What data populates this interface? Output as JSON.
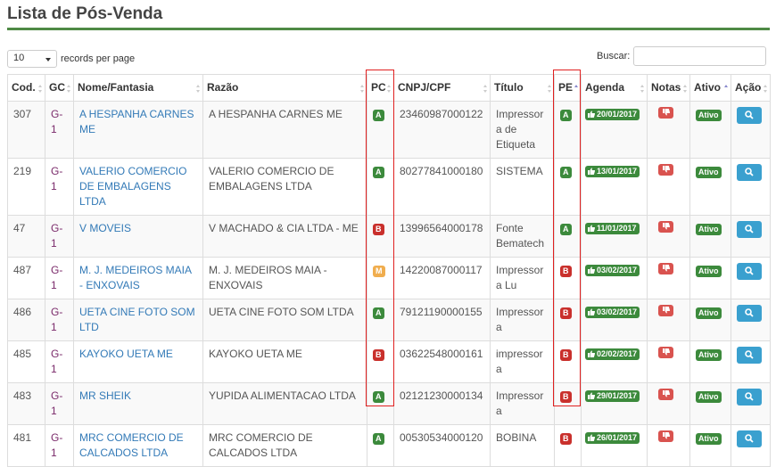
{
  "page": {
    "title": "Lista de Pós-Venda"
  },
  "controls": {
    "length_value": "10",
    "length_label": "records per page",
    "search_label": "Buscar:",
    "search_value": ""
  },
  "columns": [
    "Cod.",
    "GC",
    "Nome/Fantasia",
    "Razão",
    "PC",
    "CNPJ/CPF",
    "Título",
    "PE",
    "Agenda",
    "Notas",
    "Ativo",
    "Ação"
  ],
  "colors": {
    "green": "#3c8a3c",
    "red": "#c9302c",
    "orange": "#f0ad4e",
    "blue": "#3aa0cf",
    "highlight": "#e02020"
  },
  "rows": [
    {
      "cod": "307",
      "gc": "G-1",
      "nome": "A HESPANHA CARNES ME",
      "razao": "A HESPANHA CARNES ME",
      "pc": "A",
      "cnpj": "23460987000122",
      "titulo": "Impressora de Etiqueta",
      "pe": "A",
      "agenda": "20/01/2017",
      "ativo": "Ativo"
    },
    {
      "cod": "219",
      "gc": "G-1",
      "nome": "VALERIO COMERCIO DE EMBALAGENS LTDA",
      "razao": "VALERIO COMERCIO DE EMBALAGENS LTDA",
      "pc": "A",
      "cnpj": "80277841000180",
      "titulo": "SISTEMA",
      "pe": "A",
      "agenda": "13/01/2017",
      "ativo": "Ativo"
    },
    {
      "cod": "47",
      "gc": "G-1",
      "nome": "V MOVEIS",
      "razao": "V MACHADO & CIA LTDA - ME",
      "pc": "B",
      "cnpj": "13996564000178",
      "titulo": "Fonte Bematech",
      "pe": "A",
      "agenda": "11/01/2017",
      "ativo": "Ativo"
    },
    {
      "cod": "487",
      "gc": "G-1",
      "nome": "M. J. MEDEIROS MAIA - ENXOVAIS",
      "razao": "M. J. MEDEIROS MAIA - ENXOVAIS",
      "pc": "M",
      "cnpj": "14220087000117",
      "titulo": "Impressora Lu",
      "pe": "B",
      "agenda": "03/02/2017",
      "ativo": "Ativo"
    },
    {
      "cod": "486",
      "gc": "G-1",
      "nome": "UETA CINE FOTO SOM LTD",
      "razao": "UETA CINE FOTO SOM LTDA",
      "pc": "A",
      "cnpj": "79121190000155",
      "titulo": "Impressora",
      "pe": "B",
      "agenda": "03/02/2017",
      "ativo": "Ativo"
    },
    {
      "cod": "485",
      "gc": "G-1",
      "nome": "KAYOKO UETA ME",
      "razao": "KAYOKO UETA ME",
      "pc": "B",
      "cnpj": "03622548000161",
      "titulo": "impressora",
      "pe": "B",
      "agenda": "02/02/2017",
      "ativo": "Ativo"
    },
    {
      "cod": "483",
      "gc": "G-1",
      "nome": "MR SHEIK",
      "razao": "YUPIDA ALIMENTACAO LTDA",
      "pc": "A",
      "cnpj": "02121230000134",
      "titulo": "Impressora",
      "pe": "B",
      "agenda": "29/01/2017",
      "ativo": "Ativo"
    },
    {
      "cod": "481",
      "gc": "G-1",
      "nome": "MRC COMERCIO DE CALCADOS LTDA",
      "razao": "MRC COMERCIO DE CALCADOS LTDA",
      "pc": "A",
      "cnpj": "00530534000120",
      "titulo": "BOBINA",
      "pe": "B",
      "agenda": "26/01/2017",
      "ativo": "Ativo"
    }
  ]
}
